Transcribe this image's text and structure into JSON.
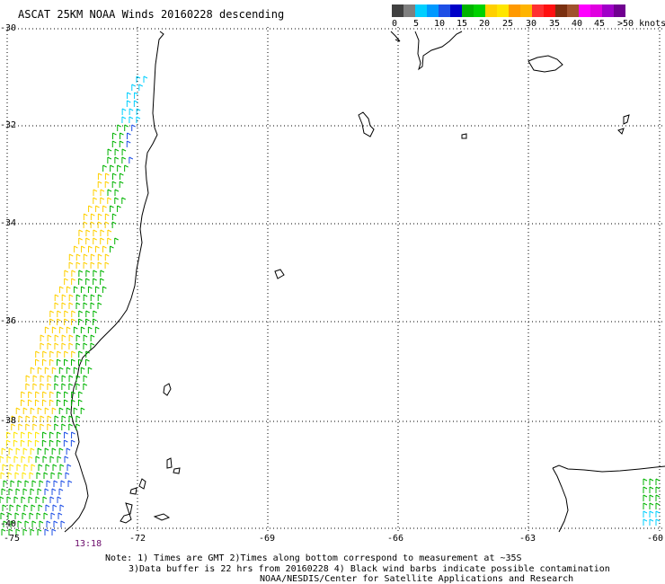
{
  "title": "ASCAT 25KM NOAA Winds 20160228 descending",
  "colorbar": {
    "colors": [
      "#404040",
      "#7f7f7f",
      "#00cfff",
      "#0099ff",
      "#1e4fe6",
      "#0000c8",
      "#00b400",
      "#00d200",
      "#ffd000",
      "#ffe600",
      "#ff9900",
      "#ffb400",
      "#ff3030",
      "#ff1010",
      "#7a3010",
      "#a0522d",
      "#ff00ff",
      "#e000e0",
      "#a000c8",
      "#700090"
    ],
    "labels": [
      "0",
      "5",
      "10",
      "15",
      "20",
      "25",
      "30",
      "35",
      "40",
      "45",
      ">50 knots"
    ]
  },
  "lat_labels": [
    "-30",
    "-32",
    "-34",
    "-36",
    "-38",
    "-40"
  ],
  "lon_labels": [
    "-75",
    "-72",
    "-69",
    "-66",
    "-63",
    "-60"
  ],
  "pass_time": "13:18",
  "notes": {
    "line1": "Note: 1) Times are GMT 2)Times along bottom correspond to measurement at ~35S",
    "line2": "3)Data buffer is 22 hrs from 20160228 4) Black wind barbs indicate possible contamination",
    "line3": "NOAA/NESDIS/Center for Satellite Applications and Research"
  },
  "map": {
    "lat_range": [
      -30,
      -40
    ],
    "lon_range": [
      -75,
      -60
    ],
    "grid": "dotted",
    "wind_barbs": "coastal swath along Chile (-75 to -71.5 lon), colored by speed"
  }
}
